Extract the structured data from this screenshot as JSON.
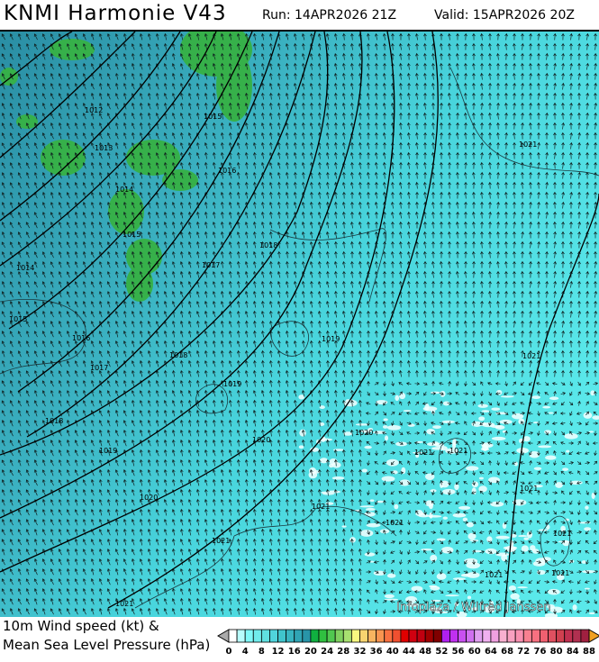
{
  "header": {
    "title": "KNMI Harmonie V43",
    "run": "Run: 14APR2026 21Z",
    "valid": "Valid: 15APR2026 20Z"
  },
  "map": {
    "credit": "Infoplaza / Wilfred Janssen",
    "isobar_labels": [
      "1012",
      "1013",
      "1014",
      "1015",
      "1014",
      "1015",
      "1016",
      "1017",
      "1018",
      "1015",
      "1016",
      "1017",
      "1018",
      "1019",
      "1019",
      "1018",
      "1019",
      "1020",
      "1020",
      "1020",
      "1021",
      "1021",
      "1021",
      "1021",
      "1021",
      "1021",
      "1021",
      "1021",
      "1021",
      "1021",
      "1021",
      "1021"
    ]
  },
  "legend": {
    "line1": "10m Wind speed (kt) &",
    "line2": "Mean Sea Level Pressure (hPa)",
    "ticks": [
      "0",
      "4",
      "8",
      "12",
      "16",
      "20",
      "24",
      "28",
      "32",
      "36",
      "40",
      "44",
      "48",
      "52",
      "56",
      "60",
      "64",
      "68",
      "72",
      "76",
      "80",
      "84",
      "88"
    ],
    "colors": [
      "#ffffff",
      "#b8fcfc",
      "#80f8f8",
      "#70ecec",
      "#60e0e0",
      "#50d4dc",
      "#40c4cc",
      "#38b4c0",
      "#30a4b4",
      "#2894a8",
      "#10b040",
      "#30c040",
      "#50c850",
      "#80d060",
      "#a8e070",
      "#f8f880",
      "#f8d470",
      "#f8b460",
      "#f89450",
      "#f87040",
      "#f05030",
      "#e00000",
      "#d00010",
      "#c00010",
      "#a00000",
      "#800000",
      "#b020f0",
      "#c030f0",
      "#c850f0",
      "#d070f0",
      "#e0a0f0",
      "#f0b0f0",
      "#f0a0e0",
      "#f8b0d0",
      "#f8a0c0",
      "#f890b0",
      "#f88090",
      "#f87080",
      "#f06070",
      "#e05060",
      "#d04050",
      "#c03050",
      "#b03050",
      "#a02040"
    ]
  }
}
